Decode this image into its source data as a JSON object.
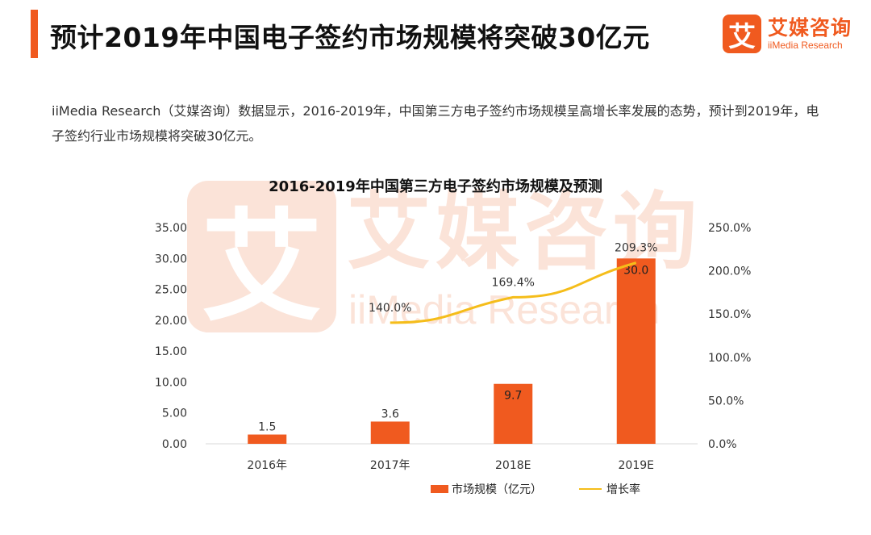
{
  "header": {
    "title": "预计2019年中国电子签约市场规模将突破30亿元",
    "accent_color": "#f05a1f",
    "brand_mark": "艾",
    "brand_cn": "艾媒咨询",
    "brand_en": "iiMedia Research"
  },
  "intro": {
    "text": "iiMedia Research（艾媒咨询）数据显示，2016-2019年，中国第三方电子签约市场规模呈高增长率发展的态势，预计到2019年，电子签约行业市场规模将突破30亿元。"
  },
  "watermark": {
    "mark": "艾",
    "cn": "艾媒咨询",
    "en": "iiMedia Research"
  },
  "chart_data": {
    "type": "bar",
    "title": "2016-2019年中国第三方电子签约市场规模及预测",
    "categories": [
      "2016年",
      "2017年",
      "2018E",
      "2019E"
    ],
    "series": [
      {
        "name": "市场规模（亿元）",
        "type": "bar",
        "axis": "left",
        "color": "#f05a1f",
        "values": [
          1.5,
          3.6,
          9.7,
          30.0
        ],
        "labels": [
          "1.5",
          "3.6",
          "9.7",
          "30.0"
        ]
      },
      {
        "name": "增长率",
        "type": "line",
        "axis": "right",
        "color": "#f5bd1a",
        "values": [
          null,
          140.0,
          169.4,
          209.3
        ],
        "labels": [
          "",
          "140.0%",
          "169.4%",
          "209.3%"
        ]
      }
    ],
    "y_left": {
      "min": 0,
      "max": 35,
      "ticks": [
        "0.00",
        "5.00",
        "10.00",
        "15.00",
        "20.00",
        "25.00",
        "30.00",
        "35.00"
      ]
    },
    "y_right": {
      "min": 0,
      "max": 250,
      "ticks": [
        "0.0%",
        "50.0%",
        "100.0%",
        "150.0%",
        "200.0%",
        "250.0%"
      ]
    },
    "grid": false,
    "legend_position": "bottom-right"
  }
}
